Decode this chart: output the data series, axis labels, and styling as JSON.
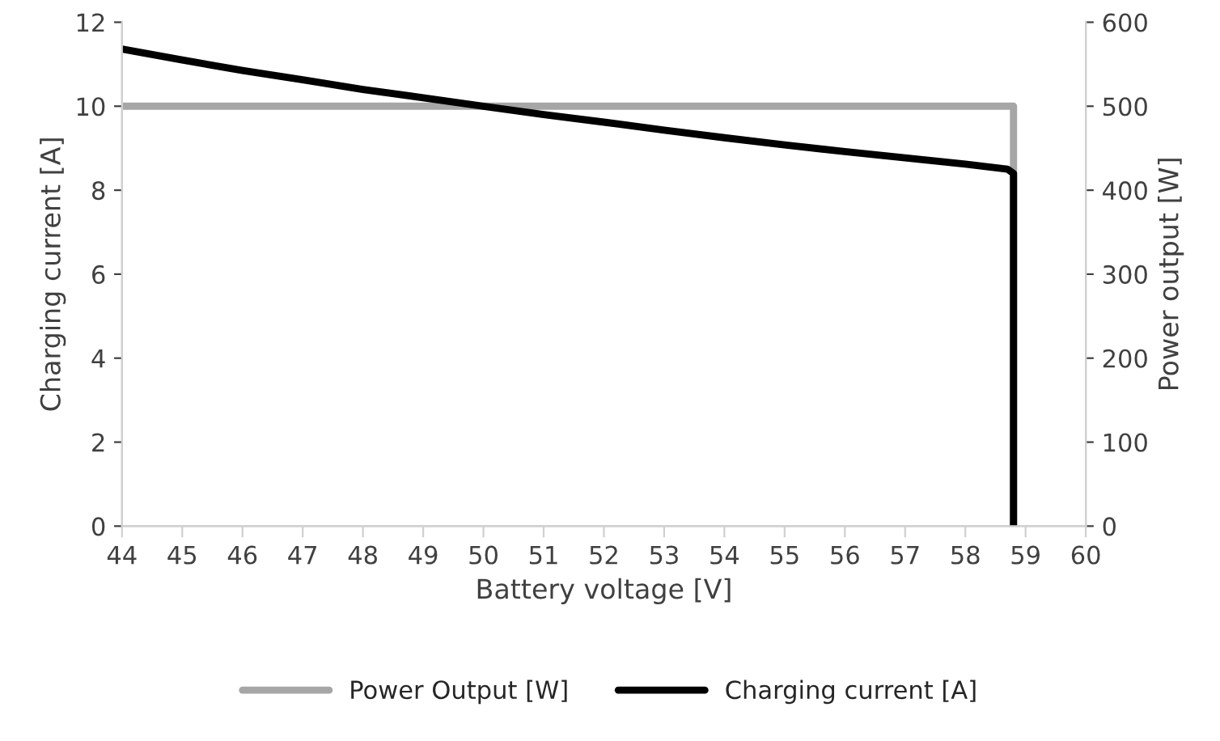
{
  "chart_data": {
    "type": "line",
    "xlabel": "Battery voltage [V]",
    "ylabel": "Charging current [A]",
    "y2label": "Power output [W]",
    "series": [
      {
        "name": "Charging current [A]",
        "color": "#000000",
        "x": [
          44,
          45,
          46,
          47,
          48,
          49,
          50,
          51,
          52,
          53,
          54,
          55,
          56,
          57,
          58,
          58.7,
          58.8,
          58.8
        ],
        "values": [
          11.36,
          11.1,
          10.85,
          10.63,
          10.4,
          10.2,
          10.0,
          9.8,
          9.62,
          9.43,
          9.25,
          9.08,
          8.92,
          8.77,
          8.62,
          8.5,
          8.4,
          0
        ]
      },
      {
        "name": "Power Output [W]",
        "color": "#a6a6a6",
        "axis": "y2",
        "x": [
          44,
          58.8,
          58.8
        ],
        "values": [
          500,
          500,
          0
        ]
      }
    ],
    "xlim": [
      44,
      60
    ],
    "xticks": [
      44,
      45,
      46,
      47,
      48,
      49,
      50,
      51,
      52,
      53,
      54,
      55,
      56,
      57,
      58,
      59,
      60
    ],
    "ylim": [
      0,
      12
    ],
    "yticks": [
      0,
      2,
      4,
      6,
      8,
      10,
      12
    ],
    "y2lim": [
      0,
      600
    ],
    "y2ticks": [
      0,
      100,
      200,
      300,
      400,
      500,
      600
    ],
    "legend": "bottom",
    "grid": false
  }
}
